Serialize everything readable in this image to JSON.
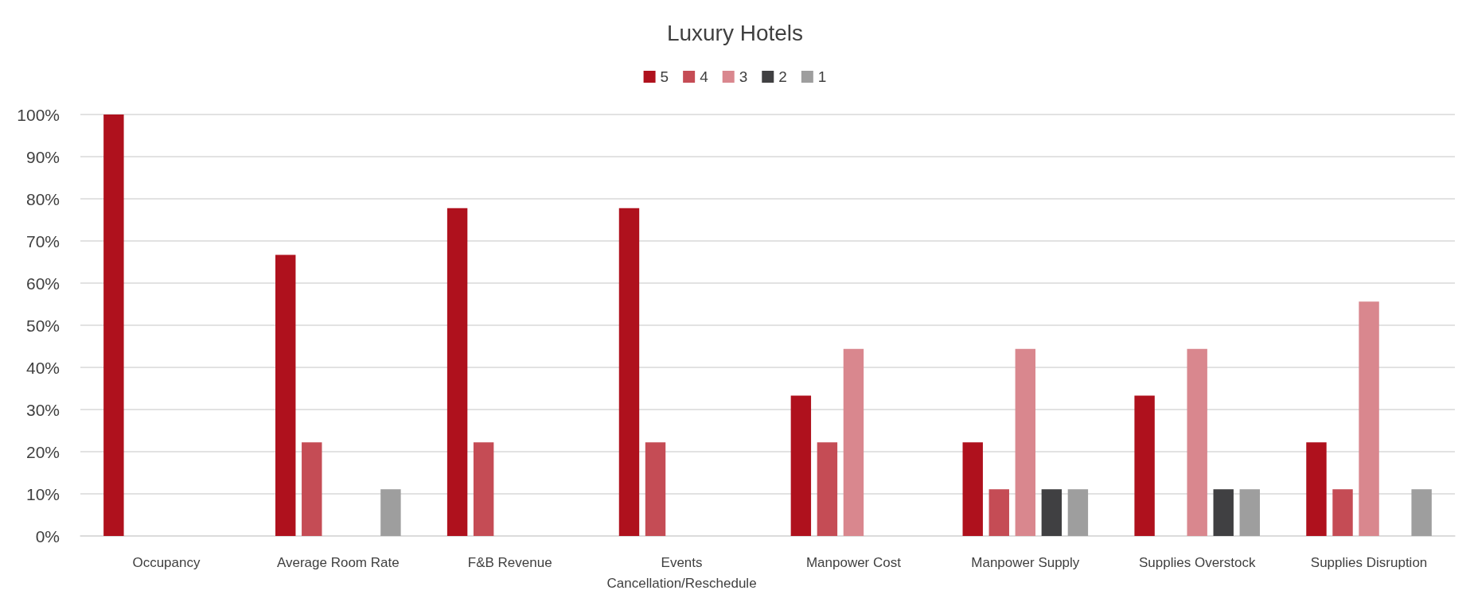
{
  "chart_data": {
    "type": "bar",
    "title": "Luxury Hotels",
    "categories": [
      "Occupancy",
      "Average Room Rate",
      "F&B Revenue",
      "Events Cancellation/Reschedule",
      "Manpower Cost",
      "Manpower Supply",
      "Supplies Overstock",
      "Supplies Disruption"
    ],
    "series": [
      {
        "name": "5",
        "color": "#af111d",
        "values": [
          100,
          66.7,
          77.8,
          77.8,
          33.3,
          22.2,
          33.3,
          22.2
        ]
      },
      {
        "name": "4",
        "color": "#c54c55",
        "values": [
          0,
          22.2,
          22.2,
          22.2,
          22.2,
          11.1,
          0,
          11.1
        ]
      },
      {
        "name": "3",
        "color": "#d9878e",
        "values": [
          0,
          0,
          0,
          0,
          44.4,
          44.4,
          44.4,
          55.6
        ]
      },
      {
        "name": "2",
        "color": "#404042",
        "values": [
          0,
          0,
          0,
          0,
          0,
          11.1,
          11.1,
          0
        ]
      },
      {
        "name": "1",
        "color": "#9e9e9e",
        "values": [
          0,
          11.1,
          0,
          0,
          0,
          11.1,
          11.1,
          11.1
        ]
      }
    ],
    "ylim": [
      0,
      100
    ],
    "yticks": [
      {
        "value": 0,
        "label": "0%"
      },
      {
        "value": 10,
        "label": "10%"
      },
      {
        "value": 20,
        "label": "20%"
      },
      {
        "value": 30,
        "label": "30%"
      },
      {
        "value": 40,
        "label": "40%"
      },
      {
        "value": 50,
        "label": "50%"
      },
      {
        "value": 60,
        "label": "60%"
      },
      {
        "value": 70,
        "label": "70%"
      },
      {
        "value": 80,
        "label": "80%"
      },
      {
        "value": 90,
        "label": "90%"
      },
      {
        "value": 100,
        "label": "100%"
      }
    ],
    "grid": "y",
    "legend": "top"
  }
}
